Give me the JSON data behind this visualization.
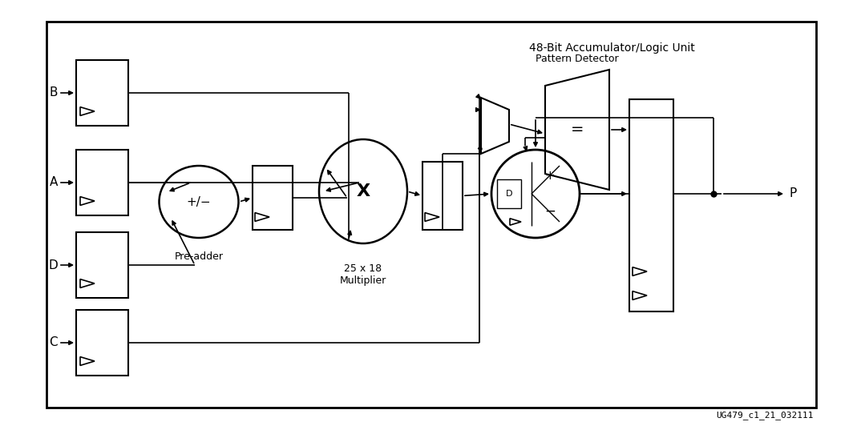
{
  "background_color": "#ffffff",
  "caption": "UG479_c1_21_032111",
  "accumulator_label": "48-Bit Accumulator/Logic Unit",
  "pre_adder_label": "Pre-adder",
  "multiplier_label": "25 x 18\nMultiplier",
  "pattern_detector_label": "Pattern Detector",
  "output_label": "P",
  "figsize": [
    10.69,
    5.37
  ],
  "dpi": 100
}
